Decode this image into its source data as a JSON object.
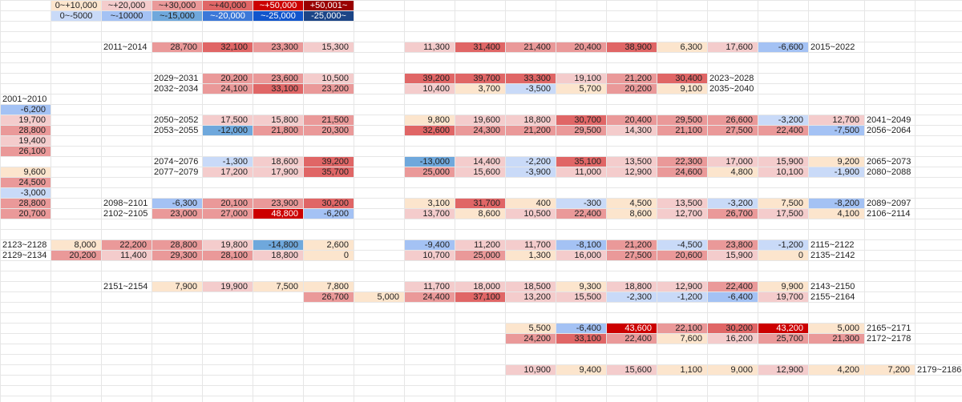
{
  "palette": {
    "neg1": "#c9daf8",
    "neg2": "#a4c2f4",
    "neg3": "#6fa8dc",
    "neg4": "#3c78d8",
    "neg5": "#1155cc",
    "neg6": "#1c4587",
    "pos1": "#fce5cd",
    "pos2": "#f4cccc",
    "pos3": "#ea9999",
    "pos4": "#e06666",
    "pos5": "#cc0000",
    "pos6": "#990000",
    "grid": "#e6e6e6"
  },
  "legend": {
    "top": [
      {
        "text": "0~+10,000",
        "tone": "pos1"
      },
      {
        "text": "~+20,000",
        "tone": "pos2"
      },
      {
        "text": "~+30,000",
        "tone": "pos3"
      },
      {
        "text": "~+40,000",
        "tone": "pos4"
      },
      {
        "text": "~+50,000",
        "tone": "pos5"
      },
      {
        "text": "+50,001~",
        "tone": "pos6"
      }
    ],
    "bottom": [
      {
        "text": "0~-5000",
        "tone": "neg1"
      },
      {
        "text": "~-10000",
        "tone": "neg2"
      },
      {
        "text": "~-15,000",
        "tone": "neg3"
      },
      {
        "text": "~-20,000",
        "tone": "neg4"
      },
      {
        "text": "~-25,000",
        "tone": "neg5"
      },
      {
        "text": "-25,000~",
        "tone": "neg6"
      }
    ]
  },
  "blocks": [
    {
      "left_label": "2011~2014",
      "rows": [
        [
          "28,700",
          "32,100",
          "23,300",
          "15,300"
        ]
      ],
      "right_row": [
        "11,300",
        "31,400",
        "21,400",
        "20,400",
        "38,900",
        "6,300",
        "17,600",
        "-6,600"
      ],
      "right_label": "2015~2022"
    },
    {
      "left_label": "2029~2031",
      "rows": [
        [
          "20,200",
          "23,600",
          "10,500"
        ]
      ],
      "right_row": [
        "39,200",
        "39,700",
        "33,300",
        "19,100",
        "21,200",
        "30,400"
      ],
      "right_label": "2023~2028"
    },
    {
      "left_label": "2032~2034",
      "rows": [
        [
          "24,100",
          "33,100",
          "23,200"
        ]
      ],
      "right_row": [
        "10,400",
        "3,700",
        "-3,500",
        "5,700",
        "20,200",
        "9,100"
      ],
      "right_label": "2035~2040"
    },
    {
      "left_label": "2050~2052",
      "rows": [
        [
          "17,500",
          "15,800",
          "21,500"
        ]
      ],
      "right_row": [
        "9,800",
        "19,600",
        "18,800",
        "30,700",
        "20,400",
        "29,500",
        "26,600",
        "-3,200",
        "12,700"
      ],
      "right_label": "2041~2049"
    },
    {
      "left_label": "2053~2055",
      "rows": [
        [
          "-12,000",
          "21,800",
          "20,300"
        ]
      ],
      "right_row": [
        "32,600",
        "24,300",
        "21,200",
        "29,500",
        "14,300",
        "21,100",
        "27,500",
        "22,400",
        "-7,500"
      ],
      "right_label": "2056~2064"
    },
    {
      "left_label": "2074~2076",
      "rows": [
        [
          "-1,300",
          "18,600",
          "39,200"
        ]
      ],
      "right_row": [
        "-13,000",
        "14,400",
        "-2,200",
        "35,100",
        "13,500",
        "22,300",
        "17,000",
        "15,900",
        "9,200"
      ],
      "right_label": "2065~2073"
    },
    {
      "left_label": "2077~2079",
      "rows": [
        [
          "17,200",
          "17,900",
          "35,700"
        ]
      ],
      "right_row": [
        "25,000",
        "15,600",
        "-3,900",
        "11,000",
        "12,900",
        "24,600",
        "4,800",
        "10,100",
        "-1,900"
      ],
      "right_label": "2080~2088"
    },
    {
      "left_label": "2098~2101",
      "rows": [
        [
          "-6,300",
          "20,100",
          "23,900",
          "30,200"
        ]
      ],
      "right_row": [
        "3,100",
        "31,700",
        "400",
        "-300",
        "4,500",
        "13,500",
        "-3,200",
        "7,500",
        "-8,200"
      ],
      "right_label": "2089~2097"
    },
    {
      "left_label": "2102~2105",
      "rows": [
        [
          "23,000",
          "27,000",
          "48,800",
          "-6,200"
        ]
      ],
      "right_row": [
        "13,700",
        "8,600",
        "10,500",
        "22,400",
        "8,600",
        "12,700",
        "26,700",
        "17,500",
        "4,100"
      ],
      "right_label": "2106~2114"
    },
    {
      "left_label": "2123~2128",
      "rows": [
        [
          "8,000",
          "22,200",
          "28,800",
          "19,800",
          "-14,800",
          "2,600"
        ]
      ],
      "right_row": [
        "-9,400",
        "11,200",
        "11,700",
        "-8,100",
        "21,200",
        "-4,500",
        "23,800",
        "-1,200"
      ],
      "right_label": "2115~2122"
    },
    {
      "left_label": "2129~2134",
      "rows": [
        [
          "20,200",
          "11,400",
          "29,300",
          "28,100",
          "18,800",
          "0"
        ]
      ],
      "right_row": [
        "10,700",
        "25,000",
        "1,300",
        "16,000",
        "27,500",
        "20,600",
        "15,900",
        "0"
      ],
      "right_label": "2135~2142"
    },
    {
      "left_label": "2151~2154",
      "rows": [
        [
          "7,900",
          "19,900",
          "7,500",
          "7,800"
        ]
      ],
      "right_row": [
        "11,700",
        "18,000",
        "18,500",
        "9,300",
        "18,800",
        "12,900",
        "22,400",
        "9,900"
      ],
      "right_label": "2143~2150"
    },
    {
      "left_label": "",
      "rows": [
        [
          "26,700",
          "5,000"
        ]
      ],
      "right_row": [
        "24,400",
        "37,100",
        "13,200",
        "15,500",
        "-2,300",
        "-1,200",
        "-6,400",
        "19,700"
      ],
      "right_label": "2155~2164"
    },
    {
      "left_label": "",
      "rows": [],
      "right_row": [
        "5,500",
        "-6,400",
        "43,600",
        "22,100",
        "30,200",
        "43,200",
        "5,000"
      ],
      "right_label": "2165~2171"
    },
    {
      "left_label": "",
      "rows": [],
      "right_row": [
        "24,200",
        "33,100",
        "22,400",
        "7,600",
        "16,200",
        "25,700",
        "21,300"
      ],
      "right_label": "2172~2178"
    },
    {
      "left_label": "",
      "rows": [],
      "right_row": [
        "10,900",
        "9,400",
        "15,600",
        "1,100",
        "9,000",
        "12,900",
        "4,200",
        "7,200"
      ],
      "right_label": "2179~2186"
    }
  ],
  "left_column": {
    "label": "2001~2010",
    "values": [
      "-6,200",
      "19,700",
      "28,800",
      "19,400",
      "26,100",
      "9,600",
      "24,500",
      "-3,000",
      "28,800",
      "20,700"
    ]
  }
}
